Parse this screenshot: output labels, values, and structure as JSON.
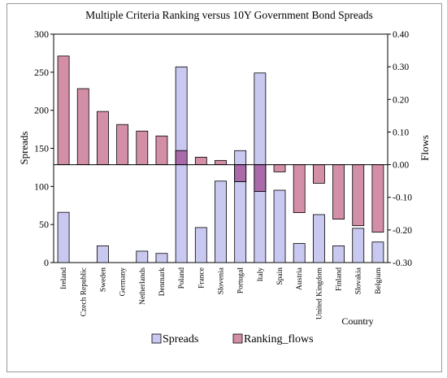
{
  "chart_data": {
    "type": "bar",
    "title": "Multiple Criteria Ranking versus 10Y Government Bond Spreads",
    "xlabel": "Country",
    "ylabel_left": "Spreads",
    "ylabel_right": "Flows",
    "categories": [
      "Ireland",
      "Czech Republic",
      "Sweden",
      "Germany",
      "Netherlands",
      "Denmark",
      "Poland",
      "France",
      "Slovenia",
      "Portugal",
      "Italy",
      "Spain",
      "Austria",
      "United Kingdom",
      "Finland",
      "Slovakia",
      "Belgium"
    ],
    "left_axis": {
      "min": 0,
      "max": 300,
      "ticks": [
        "0",
        "50",
        "100",
        "150",
        "200",
        "250",
        "300"
      ]
    },
    "right_axis": {
      "min": -0.3,
      "max": 0.4,
      "ticks": [
        "-0.30",
        "-0.20",
        "-0.10",
        "0.00",
        "0.10",
        "0.20",
        "0.30",
        "0.40"
      ]
    },
    "series": [
      {
        "name": "Spreads",
        "axis": "left",
        "color": "#c8c8f0",
        "values": [
          66,
          0,
          22,
          0,
          15,
          12,
          257,
          46,
          107,
          147,
          249,
          95,
          25,
          63,
          22,
          45,
          27
        ]
      },
      {
        "name": "Ranking_flows",
        "axis": "right",
        "color": "#d48fa8",
        "values": [
          0.333,
          0.233,
          0.163,
          0.123,
          0.103,
          0.088,
          0.043,
          0.023,
          0.013,
          -0.052,
          -0.082,
          -0.022,
          -0.147,
          -0.057,
          -0.167,
          -0.187,
          -0.207
        ]
      }
    ],
    "overlap_color": "#a86aa8",
    "legend": {
      "placement": "bottom",
      "items": [
        "Spreads",
        "Ranking_flows"
      ]
    },
    "grid": false
  }
}
